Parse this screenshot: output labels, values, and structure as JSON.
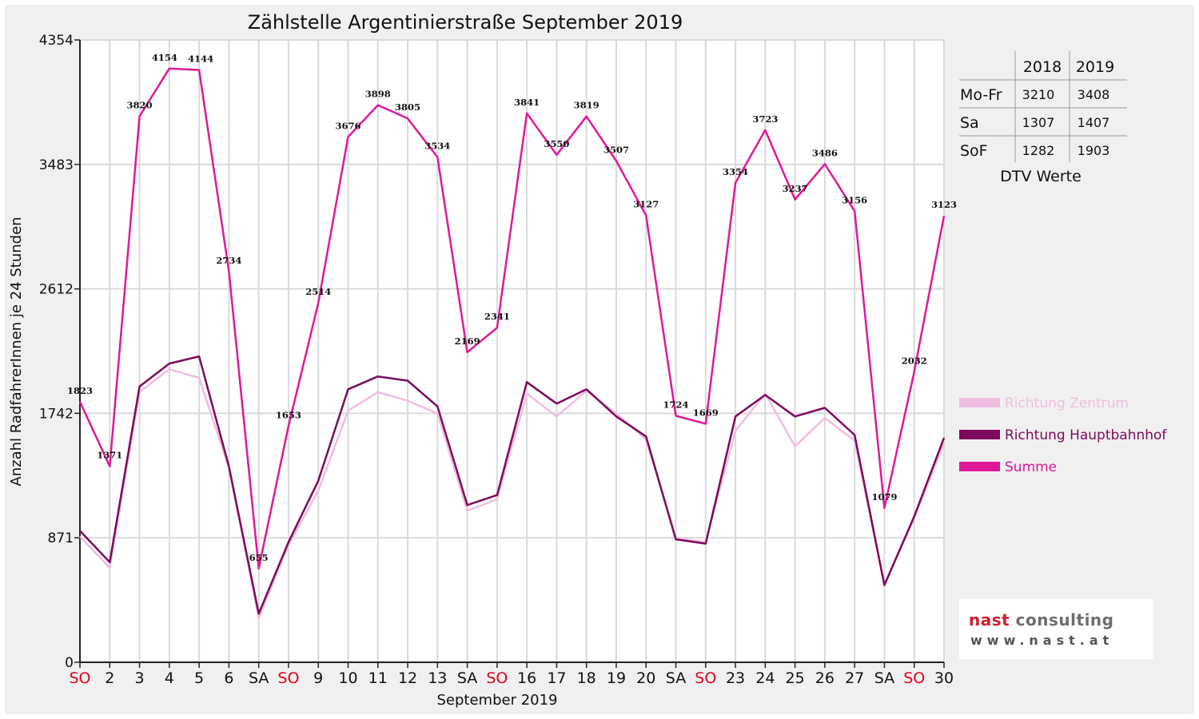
{
  "chart_data": {
    "type": "line",
    "title": "Zählstelle Argentinierstraße September 2019",
    "xlabel": "September 2019",
    "ylabel": "Anzahl RadfahrerInnen je 24 Stunden",
    "ylim": [
      0,
      4354
    ],
    "yticks": [
      0,
      871,
      1742,
      2612,
      3483,
      4354
    ],
    "categories": [
      "SO",
      "2",
      "3",
      "4",
      "5",
      "6",
      "SA",
      "SO",
      "9",
      "10",
      "11",
      "12",
      "13",
      "SA",
      "SO",
      "16",
      "17",
      "18",
      "19",
      "20",
      "SA",
      "SO",
      "23",
      "24",
      "25",
      "26",
      "27",
      "SA",
      "SO",
      "30"
    ],
    "highlight_categories": [
      "SO"
    ],
    "highlight_color": "#e0001a",
    "grid": true,
    "legend_position": "right",
    "series": [
      {
        "name": "Richtung Zentrum",
        "color": "#efbde0",
        "values": [
          880,
          660,
          1890,
          2050,
          1990,
          1360,
          310,
          820,
          1200,
          1760,
          1890,
          1830,
          1740,
          1060,
          1140,
          1880,
          1720,
          1900,
          1740,
          1560,
          870,
          840,
          1620,
          1880,
          1510,
          1710,
          1550,
          540,
          1010,
          1530
        ]
      },
      {
        "name": "Richtung Hauptbahnhof",
        "color": "#7d0a5c",
        "values": [
          920,
          700,
          1930,
          2090,
          2140,
          1370,
          340,
          840,
          1270,
          1910,
          2000,
          1970,
          1790,
          1100,
          1170,
          1960,
          1810,
          1910,
          1720,
          1580,
          860,
          830,
          1720,
          1870,
          1720,
          1780,
          1590,
          540,
          1020,
          1570
        ]
      },
      {
        "name": "Summe",
        "color": "#e0189a",
        "values": [
          1823,
          1371,
          3820,
          4154,
          4144,
          2734,
          655,
          1653,
          2514,
          3676,
          3898,
          3805,
          3534,
          2169,
          2341,
          3841,
          3550,
          3819,
          3507,
          3127,
          1724,
          1669,
          3354,
          3723,
          3237,
          3486,
          3156,
          1079,
          2032,
          3123
        ],
        "data_labels": [
          "1823",
          "1371",
          "3820",
          "4154",
          "4144",
          "2734",
          "655",
          "1653",
          "2514",
          "3676",
          "3898",
          "3805",
          "3534",
          "2169",
          "2341",
          "3841",
          "3550",
          "3819",
          "3507",
          "3127",
          "1724",
          "1669",
          "3354",
          "3723",
          "3237",
          "3486",
          "3156",
          "1079",
          "2032",
          "3123"
        ]
      }
    ],
    "table": {
      "caption": "DTV Werte",
      "columns": [
        "",
        "2018",
        "2019"
      ],
      "rows": [
        {
          "label": "Mo-Fr",
          "v2018": "3210",
          "v2019": "3408"
        },
        {
          "label": "Sa",
          "v2018": "1307",
          "v2019": "1407"
        },
        {
          "label": "SoF",
          "v2018": "1282",
          "v2019": "1903"
        }
      ]
    }
  },
  "logo": {
    "brand_first": "nast",
    "brand_second": "consulting",
    "url": "www.nast.at"
  }
}
